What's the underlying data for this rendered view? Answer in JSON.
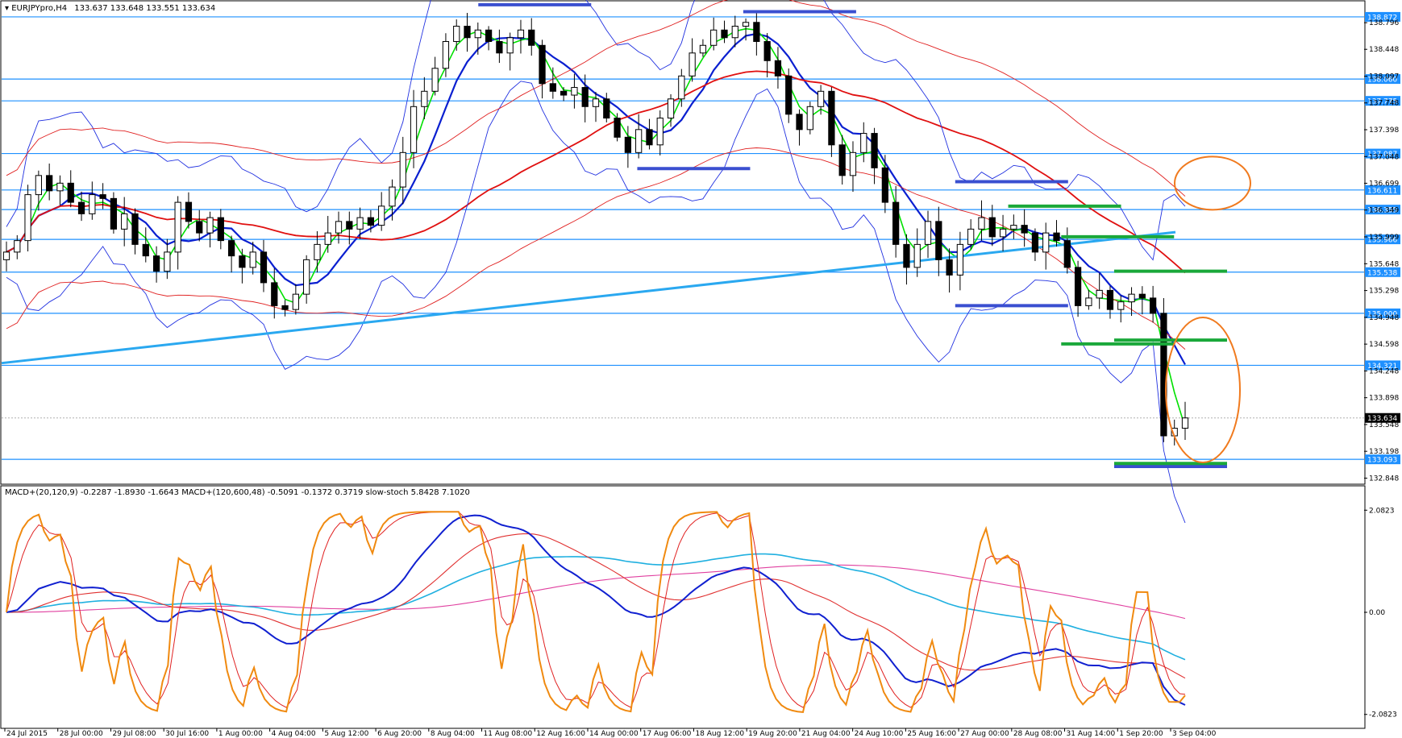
{
  "header": {
    "symbol": "EURJPYpro,H4",
    "ohlc": "133.637 133.648 133.551 133.634",
    "indicators": "MACD+(20,120,9) -0.2287 -1.8930 -1.6643  MACD+(120,600,48) -0.5091 -0.1372 0.3719  slow-stoch 5.8428 7.1020"
  },
  "colors": {
    "level_line": "#1e90ff",
    "level_tag": "#1e90ff",
    "ma_fast": "#00e000",
    "ma_mid": "#0a1fd0",
    "ma_slow": "#e01010",
    "trend_line": "#2aa8f0",
    "bollinger": "#2030e0",
    "envelope": "#e02020",
    "candle_up_body": "#ffffff",
    "candle_down_body": "#000000",
    "zone_blue": "#3a4fd0",
    "zone_green": "#1aa83a",
    "circle": "#f07a1e",
    "stoch_main": "#f08a10",
    "stoch_signal": "#e02020",
    "macd_fast": "#1020d0",
    "macd_signal": "#e03030",
    "macd_slow": "#20b0e0",
    "macd_slow_signal": "#e040a0"
  },
  "chart_data": [
    {
      "type": "candlestick",
      "title": "",
      "y_axis_ticks": [
        "138.796",
        "138.448",
        "138.097",
        "137.748",
        "137.398",
        "137.048",
        "136.699",
        "136.349",
        "135.999",
        "135.648",
        "135.298",
        "134.948",
        "134.598",
        "134.248",
        "133.898",
        "133.548",
        "133.198",
        "132.848"
      ],
      "ylim": [
        132.8,
        139.05
      ],
      "x_axis_ticks": [
        "24 Jul 2015",
        "28 Jul 00:00",
        "29 Jul 08:00",
        "30 Jul 16:00",
        "1 Aug 00:00",
        "4 Aug 04:00",
        "5 Aug 12:00",
        "6 Aug 20:00",
        "8 Aug 04:00",
        "11 Aug 08:00",
        "12 Aug 16:00",
        "14 Aug 00:00",
        "17 Aug 06:00",
        "18 Aug 12:00",
        "19 Aug 20:00",
        "21 Aug 04:00",
        "24 Aug 10:00",
        "25 Aug 16:00",
        "27 Aug 00:00",
        "28 Aug 08:00",
        "31 Aug 14:00",
        "1 Sep 20:00",
        "3 Sep 04:00"
      ],
      "level_lines": [
        "138.872",
        "138.060",
        "137.775",
        "137.087",
        "136.611",
        "136.355",
        "135.966",
        "135.538",
        "135.000",
        "134.321",
        "133.093"
      ],
      "current_price": "133.634",
      "close_path": [
        135.8,
        135.95,
        136.55,
        136.8,
        136.6,
        136.7,
        136.45,
        136.3,
        136.55,
        136.5,
        136.1,
        136.3,
        135.9,
        135.75,
        135.55,
        135.8,
        136.45,
        136.2,
        136.05,
        136.25,
        135.95,
        135.75,
        135.6,
        135.8,
        135.4,
        135.1,
        135.05,
        135.25,
        135.7,
        135.9,
        136.05,
        136.2,
        136.1,
        136.25,
        136.15,
        136.4,
        136.65,
        137.1,
        137.7,
        137.9,
        138.2,
        138.55,
        138.75,
        138.6,
        138.7,
        138.55,
        138.4,
        138.6,
        138.7,
        138.5,
        138.0,
        137.9,
        137.85,
        137.95,
        137.7,
        137.8,
        137.55,
        137.3,
        137.1,
        137.4,
        137.2,
        137.55,
        137.8,
        138.1,
        138.4,
        138.5,
        138.7,
        138.6,
        138.75,
        138.8,
        138.55,
        138.3,
        138.1,
        137.6,
        137.4,
        137.7,
        137.9,
        137.2,
        136.8,
        137.1,
        137.35,
        136.9,
        136.45,
        135.9,
        135.6,
        135.9,
        136.2,
        135.7,
        135.5,
        135.9,
        136.1,
        136.25,
        136.0,
        136.1,
        136.15,
        136.05,
        135.8,
        136.05,
        135.95,
        135.6,
        135.1,
        135.2,
        135.3,
        135.05,
        135.15,
        135.25,
        135.2,
        135.0,
        133.4,
        133.5,
        133.634
      ],
      "trend_line_endpoints": [
        134.35,
        136.06
      ],
      "zones": {
        "blue": [
          [
            "12 Aug 16:00",
            139.03
          ],
          [
            "21 Aug 04:00",
            138.94
          ],
          [
            "18 Aug 12:00",
            136.89
          ],
          [
            "28 Aug 08:00",
            136.72
          ],
          [
            "28 Aug 08:00",
            135.1
          ],
          [
            "3 Sep 04:00",
            133.0
          ]
        ],
        "green": [
          [
            "31 Aug 14:00",
            136.4
          ],
          [
            "1 Sep 20:00",
            136.0
          ],
          [
            "3 Sep 04:00",
            135.55
          ],
          [
            "1 Sep 20:00",
            134.6
          ],
          [
            "3 Sep 04:00",
            134.65
          ],
          [
            "3 Sep 04:00",
            133.04
          ]
        ]
      }
    },
    {
      "type": "line",
      "title": "",
      "y_axis_ticks": [
        "2.0823",
        "0.00",
        "-2.0823"
      ],
      "ylim": [
        -2.3,
        2.3
      ],
      "series_names": [
        "MACD+(20,120,9)",
        "MACD+(120,600,48)",
        "slow-stoch"
      ]
    }
  ]
}
